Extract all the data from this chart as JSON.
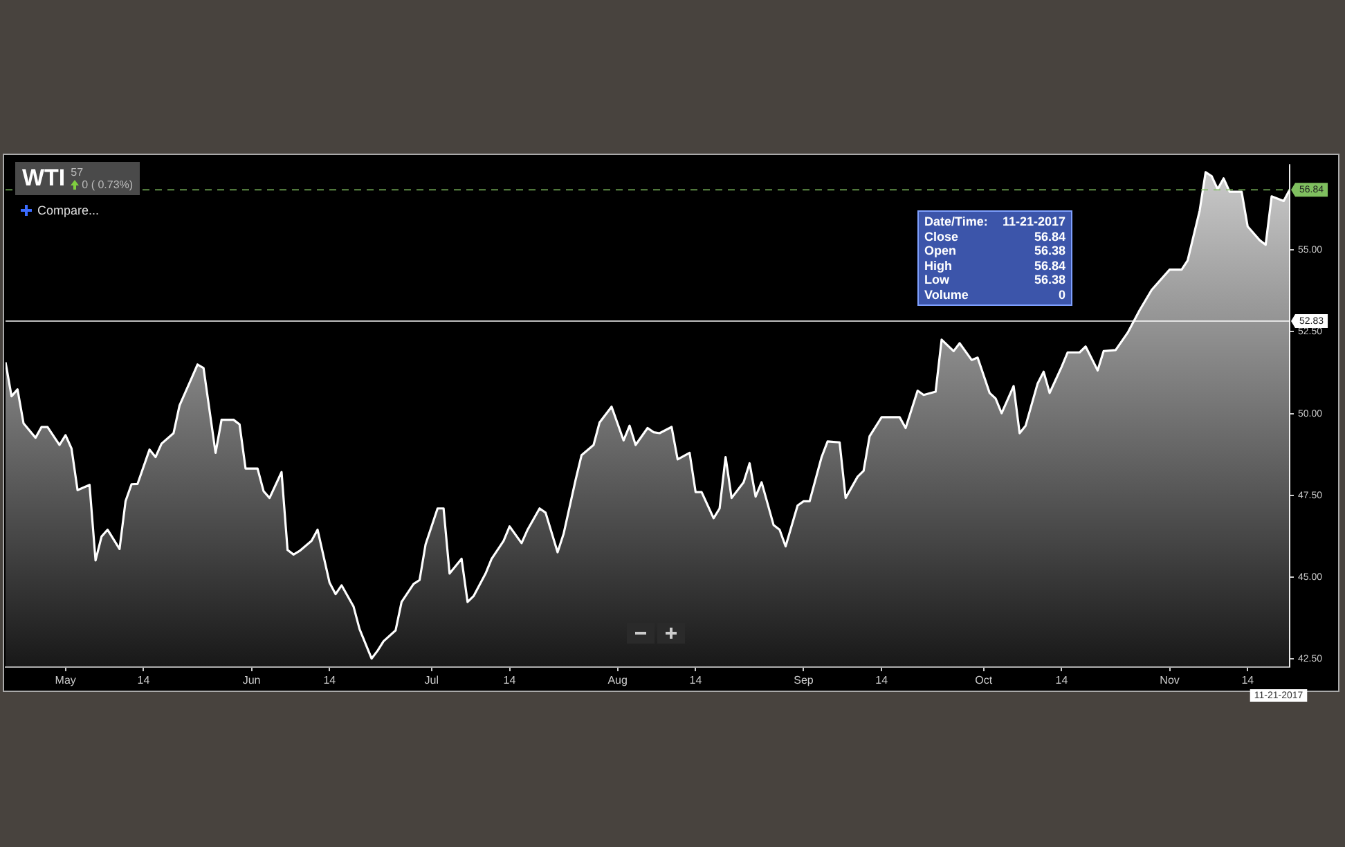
{
  "chart_data": {
    "type": "area",
    "title": "WTI",
    "subtitle": "57",
    "annotations": [
      "0 ( 0.73%)",
      "Compare...",
      "Date/Time: 11-21-2017",
      "Close 56.84",
      "Open 56.38",
      "High 56.84",
      "Low 56.38",
      "Volume 0"
    ],
    "x": [
      "2017-04-21",
      "2017-04-22",
      "2017-04-23",
      "2017-04-24",
      "2017-04-26",
      "2017-04-27",
      "2017-04-28",
      "2017-04-30",
      "2017-05-01",
      "2017-05-02",
      "2017-05-03",
      "2017-05-05",
      "2017-05-06",
      "2017-05-07",
      "2017-05-08",
      "2017-05-10",
      "2017-05-11",
      "2017-05-12",
      "2017-05-13",
      "2017-05-15",
      "2017-05-16",
      "2017-05-17",
      "2017-05-19",
      "2017-05-20",
      "2017-05-22",
      "2017-05-23",
      "2017-05-24",
      "2017-05-26",
      "2017-05-27",
      "2017-05-29",
      "2017-05-30",
      "2017-05-31",
      "2017-06-02",
      "2017-06-03",
      "2017-06-04",
      "2017-06-06",
      "2017-06-07",
      "2017-06-08",
      "2017-06-09",
      "2017-06-11",
      "2017-06-12",
      "2017-06-14",
      "2017-06-15",
      "2017-06-16",
      "2017-06-18",
      "2017-06-19",
      "2017-06-21",
      "2017-06-22",
      "2017-06-23",
      "2017-06-25",
      "2017-06-26",
      "2017-06-28",
      "2017-06-29",
      "2017-06-30",
      "2017-07-02",
      "2017-07-03",
      "2017-07-04",
      "2017-07-06",
      "2017-07-07",
      "2017-07-08",
      "2017-07-10",
      "2017-07-11",
      "2017-07-13",
      "2017-07-14",
      "2017-07-16",
      "2017-07-17",
      "2017-07-19",
      "2017-07-20",
      "2017-07-22",
      "2017-07-23",
      "2017-07-25",
      "2017-07-26",
      "2017-07-28",
      "2017-07-29",
      "2017-07-31",
      "2017-08-02",
      "2017-08-03",
      "2017-08-04",
      "2017-08-06",
      "2017-08-07",
      "2017-08-08",
      "2017-08-10",
      "2017-08-11",
      "2017-08-13",
      "2017-08-14",
      "2017-08-15",
      "2017-08-17",
      "2017-08-18",
      "2017-08-19",
      "2017-08-20",
      "2017-08-22",
      "2017-08-23",
      "2017-08-24",
      "2017-08-25",
      "2017-08-27",
      "2017-08-28",
      "2017-08-29",
      "2017-08-31",
      "2017-09-01",
      "2017-09-02",
      "2017-09-04",
      "2017-09-05",
      "2017-09-07",
      "2017-09-08",
      "2017-09-10",
      "2017-09-11",
      "2017-09-12",
      "2017-09-14",
      "2017-09-16",
      "2017-09-17",
      "2017-09-18",
      "2017-09-20",
      "2017-09-21",
      "2017-09-23",
      "2017-09-24",
      "2017-09-26",
      "2017-09-27",
      "2017-09-29",
      "2017-09-30",
      "2017-10-02",
      "2017-10-03",
      "2017-10-04",
      "2017-10-06",
      "2017-10-07",
      "2017-10-08",
      "2017-10-10",
      "2017-10-11",
      "2017-10-12",
      "2017-10-14",
      "2017-10-15",
      "2017-10-17",
      "2017-10-18",
      "2017-10-20",
      "2017-10-21",
      "2017-10-23",
      "2017-10-25",
      "2017-10-27",
      "2017-10-29",
      "2017-11-01",
      "2017-11-03",
      "2017-11-04",
      "2017-11-06",
      "2017-11-07",
      "2017-11-08",
      "2017-11-09",
      "2017-11-10",
      "2017-11-11",
      "2017-11-13",
      "2017-11-14",
      "2017-11-16",
      "2017-11-17",
      "2017-11-18",
      "2017-11-20",
      "2017-11-21"
    ],
    "series": [
      {
        "color": "#ffffff",
        "values": [
          51.57,
          50.53,
          50.74,
          49.7,
          49.26,
          49.59,
          49.59,
          49.04,
          49.34,
          48.93,
          47.66,
          47.82,
          45.51,
          46.24,
          46.45,
          45.86,
          47.32,
          47.84,
          47.85,
          48.9,
          48.67,
          49.08,
          49.4,
          50.25,
          51.08,
          51.5,
          51.39,
          48.8,
          49.81,
          49.81,
          49.67,
          48.32,
          48.32,
          47.63,
          47.42,
          48.21,
          45.83,
          45.69,
          45.8,
          46.11,
          46.45,
          44.83,
          44.48,
          44.75,
          44.1,
          43.41,
          42.51,
          42.75,
          43.04,
          43.37,
          44.24,
          44.79,
          44.91,
          46.0,
          47.1,
          47.1,
          45.11,
          45.56,
          44.24,
          44.42,
          45.11,
          45.56,
          46.11,
          46.55,
          46.04,
          46.45,
          47.1,
          46.97,
          45.76,
          46.32,
          47.97,
          48.73,
          49.04,
          49.73,
          50.21,
          49.18,
          49.63,
          49.04,
          49.56,
          49.43,
          49.4,
          49.59,
          48.6,
          48.8,
          47.6,
          47.6,
          46.8,
          47.1,
          48.67,
          47.42,
          47.9,
          48.48,
          47.46,
          47.9,
          46.59,
          46.45,
          45.94,
          47.19,
          47.32,
          47.32,
          48.67,
          49.15,
          49.12,
          47.42,
          48.07,
          48.25,
          49.31,
          49.89,
          49.89,
          49.89,
          49.56,
          50.7,
          50.57,
          50.67,
          52.26,
          51.91,
          52.15,
          51.64,
          51.71,
          50.63,
          50.46,
          50.01,
          50.84,
          49.4,
          49.63,
          50.92,
          51.28,
          50.63,
          51.43,
          51.87,
          51.87,
          52.05,
          51.32,
          51.91,
          51.94,
          52.47,
          53.16,
          53.78,
          54.4,
          54.4,
          54.68,
          56.2,
          57.38,
          57.26,
          56.86,
          57.19,
          56.78,
          56.78,
          55.72,
          55.3,
          55.16,
          56.64,
          56.5,
          56.84
        ]
      }
    ],
    "xlim": [
      "2017-04-21",
      "2017-11-21"
    ],
    "xticks": [
      {
        "value": "2017-05-01",
        "label": "May"
      },
      {
        "value": "2017-05-14",
        "label": "14"
      },
      {
        "value": "2017-06-01",
        "label": "Jun"
      },
      {
        "value": "2017-06-14",
        "label": "14"
      },
      {
        "value": "2017-07-01",
        "label": "Jul"
      },
      {
        "value": "2017-07-14",
        "label": "14"
      },
      {
        "value": "2017-08-01",
        "label": "Aug"
      },
      {
        "value": "2017-08-14",
        "label": "14"
      },
      {
        "value": "2017-09-01",
        "label": "Sep"
      },
      {
        "value": "2017-09-14",
        "label": "14"
      },
      {
        "value": "2017-10-01",
        "label": "Oct"
      },
      {
        "value": "2017-10-14",
        "label": "14"
      },
      {
        "value": "2017-11-01",
        "label": "Nov"
      },
      {
        "value": "2017-11-14",
        "label": "14"
      }
    ],
    "ylim": [
      42.25,
      57.6
    ],
    "yticks": [
      {
        "value": 42.5,
        "label": "42.50"
      },
      {
        "value": 45,
        "label": "45.00"
      },
      {
        "value": 47.5,
        "label": "47.50"
      },
      {
        "value": 50,
        "label": "50.00"
      },
      {
        "value": 52.5,
        "label": "52.50"
      },
      {
        "value": 55,
        "label": "55.00"
      }
    ],
    "ref_lines": [
      {
        "axis": "y",
        "value": 56.84,
        "label": "56.84",
        "color": "#7fbf5f",
        "line_style": "dashed"
      },
      {
        "axis": "y",
        "value": 52.83,
        "label": "52.83",
        "color": "#ffffff",
        "line_style": "solid"
      },
      {
        "axis": "x",
        "value": "2017-11-21",
        "label": "11-21-2017",
        "color": "#ffffff",
        "line_style": "solid"
      }
    ],
    "marker": "none",
    "line_style": "solid"
  }
}
